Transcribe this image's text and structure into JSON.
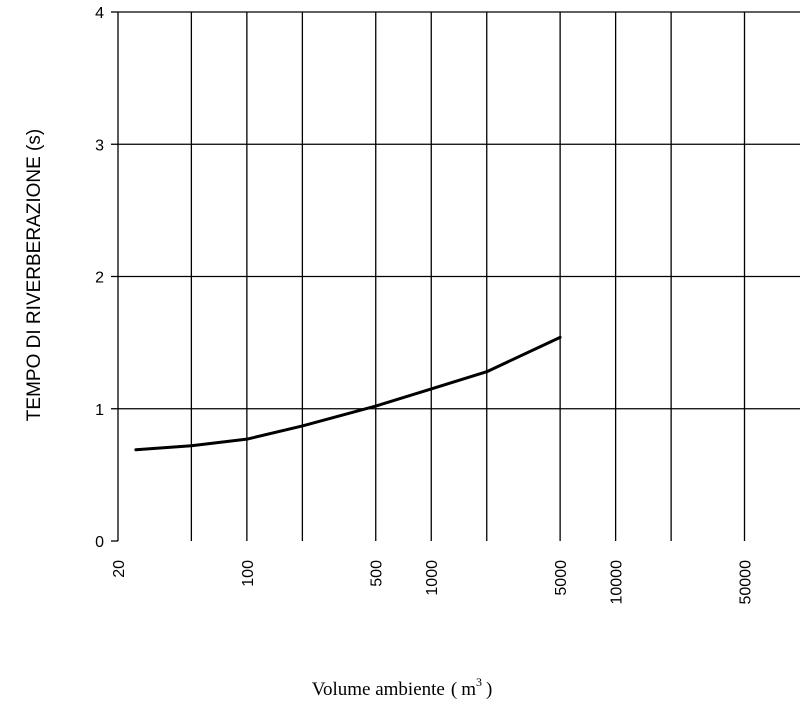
{
  "chart_data": {
    "type": "line",
    "title": "",
    "ylabel": "TEMPO DI RIVERBERAZIONE (s)",
    "xlabel": {
      "text": "Volume ambiente",
      "unit_open": "(",
      "unit_base": "m",
      "unit_sup": "3",
      "unit_close": ")"
    },
    "x_scale": "log",
    "xlim": [
      20,
      100000
    ],
    "ylim": [
      0,
      4
    ],
    "y_ticks": [
      0,
      1,
      2,
      3,
      4
    ],
    "x_tick_labels": [
      "20",
      "100",
      "500",
      "1000",
      "5000",
      "10000",
      "50000"
    ],
    "x_gridlines": [
      50,
      100,
      200,
      500,
      1000,
      2000,
      5000,
      10000,
      20000,
      50000
    ],
    "grid": true,
    "series": [
      {
        "x": [
          25,
          50,
          100,
          200,
          500,
          1000,
          2000,
          5000
        ],
        "y": [
          0.69,
          0.72,
          0.77,
          0.87,
          1.02,
          1.15,
          1.28,
          1.54
        ]
      }
    ]
  }
}
